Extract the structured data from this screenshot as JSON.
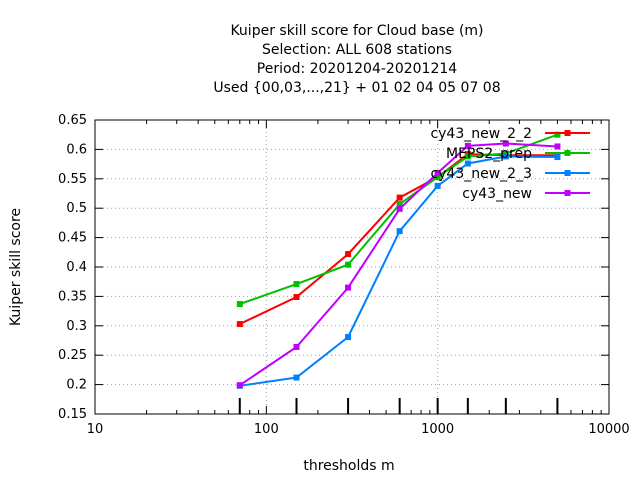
{
  "chart_data": {
    "type": "line",
    "title_lines": [
      "Kuiper skill score  for Cloud base (m)",
      "Selection: ALL     608 stations",
      "Period: 20201204-20201214",
      "Used {00,03,...,21} + 01 02 04 05 07 08"
    ],
    "xlabel": "thresholds m",
    "ylabel": "Kuiper skill score",
    "x_scale": "log",
    "xlim": [
      10,
      10000
    ],
    "ylim": [
      0.15,
      0.65
    ],
    "x_ticks": [
      10,
      100,
      1000,
      10000
    ],
    "x_tick_labels": [
      "10",
      "100",
      "1000",
      "10000"
    ],
    "y_ticks": [
      0.15,
      0.2,
      0.25,
      0.3,
      0.35,
      0.4,
      0.45,
      0.5,
      0.55,
      0.6,
      0.65
    ],
    "y_tick_labels": [
      "0.15",
      "0.2",
      "0.25",
      "0.3",
      "0.35",
      "0.4",
      "0.45",
      "0.5",
      "0.55",
      "0.6",
      "0.65"
    ],
    "grid": true,
    "legend_position": "top-right",
    "threshold_markers": [
      70,
      150,
      300,
      600,
      1000,
      1500,
      2500,
      5000
    ],
    "x": [
      70,
      150,
      300,
      600,
      1000,
      1500,
      2500,
      5000
    ],
    "series": [
      {
        "name": "cy43_new_2_2",
        "color": "#ff0000",
        "values": [
          0.303,
          0.349,
          0.422,
          0.518,
          0.553,
          0.592,
          0.59,
          0.59
        ]
      },
      {
        "name": "MEPS2_prep",
        "color": "#00c000",
        "values": [
          0.337,
          0.371,
          0.404,
          0.507,
          0.553,
          0.588,
          0.593,
          0.625
        ]
      },
      {
        "name": "cy43_new_2_3",
        "color": "#0080ff",
        "values": [
          0.198,
          0.212,
          0.281,
          0.461,
          0.538,
          0.576,
          0.588,
          0.587
        ]
      },
      {
        "name": "cy43_new",
        "color": "#c000ff",
        "values": [
          0.199,
          0.264,
          0.365,
          0.499,
          0.56,
          0.606,
          0.61,
          0.605
        ]
      }
    ]
  }
}
